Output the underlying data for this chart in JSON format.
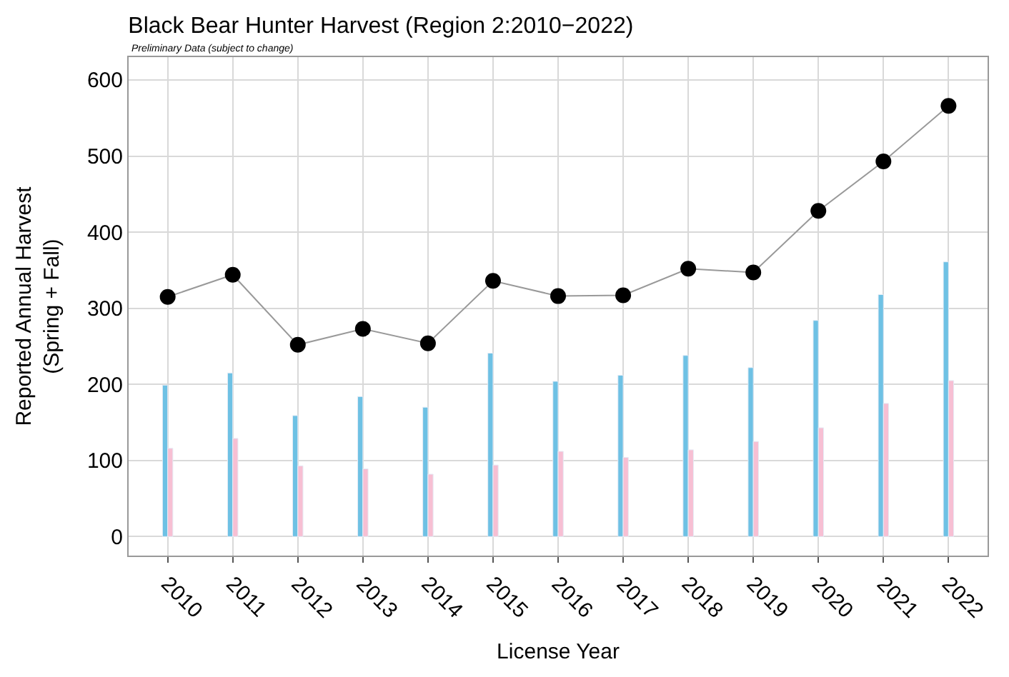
{
  "chart_data": {
    "type": "bar",
    "title": "Black Bear Hunter Harvest (Region 2:2010−2022)",
    "subtitle": "Preliminary Data (subject to change)",
    "xlabel": "License Year",
    "ylabel": "Reported Annual Harvest\n(Spring + Fall)",
    "categories": [
      "2010",
      "2011",
      "2012",
      "2013",
      "2014",
      "2015",
      "2016",
      "2017",
      "2018",
      "2019",
      "2020",
      "2021",
      "2022"
    ],
    "series": [
      {
        "color": "#6ec1e4",
        "values": [
          199,
          215,
          159,
          184,
          170,
          241,
          204,
          212,
          238,
          222,
          284,
          318,
          361
        ]
      },
      {
        "color": "#f7bfd3",
        "values": [
          116,
          129,
          93,
          89,
          82,
          94,
          112,
          104,
          114,
          125,
          143,
          175,
          205
        ]
      },
      {
        "type": "line",
        "color": "#000000",
        "marker": "circle",
        "values": [
          315,
          344,
          252,
          273,
          254,
          336,
          316,
          317,
          352,
          347,
          428,
          493,
          566
        ]
      }
    ],
    "ylim": [
      -25,
      630
    ],
    "yticks": [
      0,
      100,
      200,
      300,
      400,
      500,
      600
    ],
    "grid": true
  }
}
